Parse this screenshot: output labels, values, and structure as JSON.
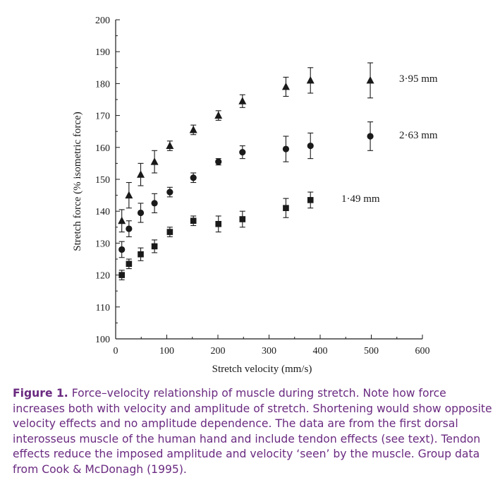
{
  "chart_data": {
    "type": "scatter",
    "xlabel": "Stretch velocity (mm/s)",
    "ylabel": "Stretch force (% isometric force)",
    "xlim": [
      0,
      600
    ],
    "ylim": [
      100,
      200
    ],
    "xticks": [
      0,
      100,
      200,
      300,
      400,
      500,
      600
    ],
    "yticks": [
      100,
      110,
      120,
      130,
      140,
      150,
      160,
      170,
      180,
      190,
      200
    ],
    "grid": false,
    "error_bars": true,
    "series": [
      {
        "name": "3·95 mm",
        "marker": "triangle",
        "x": [
          12,
          26,
          49,
          76,
          106,
          152,
          201,
          248,
          333,
          381,
          498
        ],
        "y": [
          137,
          145,
          151.5,
          155.5,
          160.5,
          165.5,
          170,
          174.5,
          179,
          181,
          181
        ],
        "err": [
          3.5,
          4,
          3.5,
          3.5,
          1.5,
          1.5,
          1.5,
          2,
          3,
          4,
          5.5
        ]
      },
      {
        "name": "2·63 mm",
        "marker": "circle",
        "x": [
          12,
          26,
          49,
          76,
          106,
          152,
          201,
          248,
          333,
          381,
          498
        ],
        "y": [
          128,
          134.5,
          139.5,
          142.5,
          146,
          150.5,
          155.5,
          158.5,
          159.5,
          160.5,
          163.5
        ],
        "err": [
          2.5,
          2.5,
          3,
          3,
          1.5,
          1.5,
          1,
          2,
          4,
          4,
          4.5
        ]
      },
      {
        "name": "1·49 mm",
        "marker": "square",
        "x": [
          12,
          26,
          49,
          76,
          106,
          152,
          201,
          248,
          333,
          381
        ],
        "y": [
          120,
          123.5,
          126.5,
          129,
          133.5,
          137,
          136,
          137.5,
          141,
          143.5
        ],
        "err": [
          1.5,
          1.5,
          2,
          2,
          1.5,
          1.5,
          2.5,
          2.5,
          3,
          2.5
        ]
      }
    ]
  },
  "caption": {
    "figure_label": "Figure 1.",
    "text": " Force–velocity relationship of muscle during stretch. Note how force increases both with velocity and amplitude of stretch. Shortening would show opposite velocity effects and no amplitude dependence. The data are from the first dorsal interosseus muscle of the human hand and include tendon effects (see text). Tendon effects reduce the imposed amplitude and velocity ‘seen’ by the muscle. Group data from Cook & McDonagh (1995)."
  }
}
